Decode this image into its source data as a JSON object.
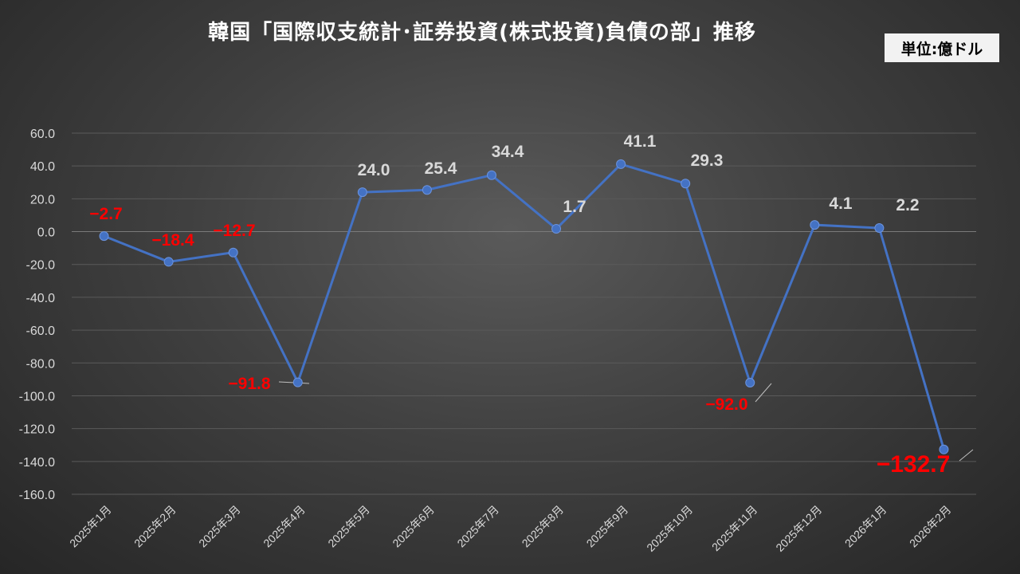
{
  "title": "韓国「国際収支統計･証券投資(株式投資)負債の部」推移",
  "unit_label": "単位:億ドル",
  "colors": {
    "line": "#4472C4",
    "positive_label": "#d9d9d9",
    "negative_label": "#ff0000",
    "axis_text": "#d9d9d9",
    "grid": "#5a5a5a"
  },
  "chart_data": {
    "type": "line",
    "title": "韓国「国際収支統計･証券投資(株式投資)負債の部」推移",
    "xlabel": "",
    "ylabel": "",
    "ylim": [
      -160,
      60
    ],
    "yticks": [
      60,
      40,
      20,
      0,
      -20,
      -40,
      -60,
      -80,
      -100,
      -120,
      -140,
      -160
    ],
    "ytick_labels": [
      "60.0",
      "40.0",
      "20.0",
      "0.0",
      "-20.0",
      "-40.0",
      "-60.0",
      "-80.0",
      "-100.0",
      "-120.0",
      "-140.0",
      "-160.0"
    ],
    "grid": true,
    "categories": [
      "2025年1月",
      "2025年2月",
      "2025年3月",
      "2025年4月",
      "2025年5月",
      "2025年6月",
      "2025年7月",
      "2025年8月",
      "2025年9月",
      "2025年10月",
      "2025年11月",
      "2025年12月",
      "2026年1月",
      "2026年2月"
    ],
    "values": [
      -2.7,
      -18.4,
      -12.7,
      -91.8,
      24.0,
      25.4,
      34.4,
      1.7,
      41.1,
      29.3,
      -92.0,
      4.1,
      2.2,
      -132.7
    ],
    "data_labels": [
      "−2.7",
      "−18.4",
      "−12.7",
      "−91.8",
      "24.0",
      "25.4",
      "34.4",
      "1.7",
      "41.1",
      "29.3",
      "−92.0",
      "4.1",
      "2.2",
      "−132.7"
    ]
  }
}
